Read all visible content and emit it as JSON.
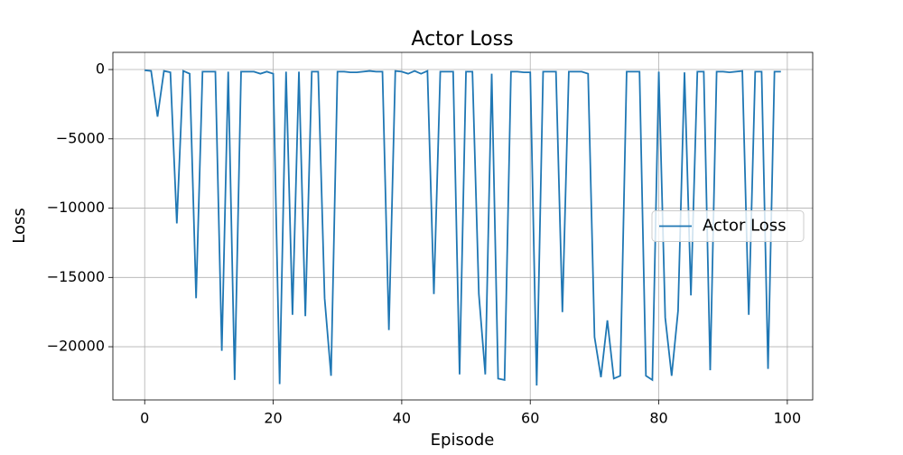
{
  "chart_data": {
    "type": "line",
    "title": "Actor Loss",
    "x_label": "Episode",
    "y_label": "Loss",
    "x": [
      0,
      1,
      2,
      3,
      4,
      5,
      6,
      7,
      8,
      9,
      10,
      11,
      12,
      13,
      14,
      15,
      16,
      17,
      18,
      19,
      20,
      21,
      22,
      23,
      24,
      25,
      26,
      27,
      28,
      29,
      30,
      31,
      32,
      33,
      34,
      35,
      36,
      37,
      38,
      39,
      40,
      41,
      42,
      43,
      44,
      45,
      46,
      47,
      48,
      49,
      50,
      51,
      52,
      53,
      54,
      55,
      56,
      57,
      58,
      59,
      60,
      61,
      62,
      63,
      64,
      65,
      66,
      67,
      68,
      69,
      70,
      71,
      72,
      73,
      74,
      75,
      76,
      77,
      78,
      79,
      80,
      81,
      82,
      83,
      84,
      85,
      86,
      87,
      88,
      89,
      90,
      91,
      92,
      93,
      94,
      95,
      96,
      97,
      98,
      99
    ],
    "series": [
      {
        "name": "Actor Loss",
        "color": "#1f77b4",
        "values": [
          -50,
          -100,
          -3400,
          -100,
          -200,
          -11100,
          -100,
          -300,
          -16500,
          -150,
          -150,
          -150,
          -20300,
          -150,
          -22400,
          -150,
          -150,
          -150,
          -300,
          -150,
          -300,
          -22700,
          -150,
          -17700,
          -150,
          -17800,
          -150,
          -150,
          -16500,
          -22100,
          -150,
          -150,
          -200,
          -200,
          -150,
          -100,
          -150,
          -150,
          -18800,
          -100,
          -150,
          -300,
          -100,
          -300,
          -100,
          -16200,
          -150,
          -150,
          -150,
          -22000,
          -150,
          -150,
          -16200,
          -22000,
          -300,
          -22300,
          -22400,
          -150,
          -150,
          -200,
          -200,
          -22800,
          -150,
          -150,
          -150,
          -17500,
          -150,
          -150,
          -150,
          -300,
          -19300,
          -22200,
          -18100,
          -22300,
          -22100,
          -150,
          -150,
          -150,
          -22100,
          -22400,
          -150,
          -17900,
          -22100,
          -17400,
          -200,
          -16300,
          -150,
          -150,
          -21700,
          -150,
          -150,
          -200,
          -150,
          -100,
          -17700,
          -150,
          -150,
          -21600,
          -150,
          -150
        ]
      }
    ],
    "xlim": [
      -4.95,
      103.95
    ],
    "ylim": [
      -23840,
      1240
    ],
    "xticks": [
      0,
      20,
      40,
      60,
      80,
      100
    ],
    "yticks": [
      {
        "value": -20000,
        "label": "−20000"
      },
      {
        "value": -15000,
        "label": "−15000"
      },
      {
        "value": -10000,
        "label": "−10000"
      },
      {
        "value": -5000,
        "label": "−5000"
      },
      0
    ],
    "grid": true,
    "legend": "center right"
  }
}
